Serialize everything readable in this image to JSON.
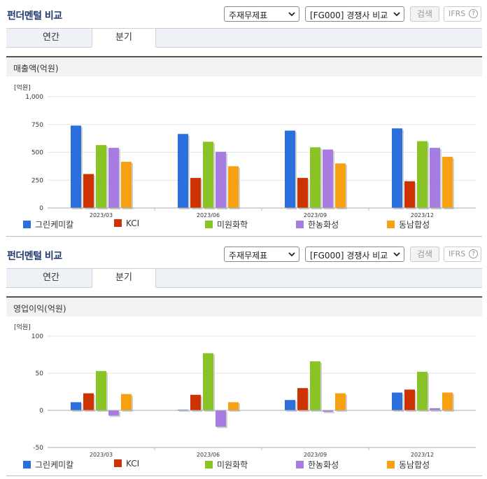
{
  "panels": [
    {
      "title": "펀더멘털 비교",
      "select_report": "주재무제표",
      "select_compare": "[FG000] 경쟁사 비교",
      "search_label": "검색",
      "ifrs_label": "IFRS",
      "ifrs_help": "?",
      "tabs": [
        {
          "label": "연간"
        },
        {
          "label": "분기"
        }
      ],
      "active_tab": 1,
      "section_title": "매출액(억원)"
    },
    {
      "title": "펀더멘털 비교",
      "select_report": "주재무제표",
      "select_compare": "[FG000] 경쟁사 비교",
      "search_label": "검색",
      "ifrs_label": "IFRS",
      "ifrs_help": "?",
      "tabs": [
        {
          "label": "연간"
        },
        {
          "label": "분기"
        }
      ],
      "active_tab": 1,
      "section_title": "영업이익(억원)"
    }
  ],
  "chart_data": [
    {
      "type": "bar",
      "unit_label": "[억원]",
      "categories": [
        "2023/03",
        "2023/06",
        "2023/09",
        "2023/12"
      ],
      "ylim": [
        0,
        1000
      ],
      "yticks": [
        0,
        250,
        500,
        750,
        1000
      ],
      "ytick_labels": [
        "0",
        "250",
        "500",
        "750",
        "1,000"
      ],
      "grid": true,
      "legend_position": "bottom",
      "series": [
        {
          "name": "그린케미칼",
          "color": "#2a6fdb",
          "values": [
            740,
            665,
            695,
            715
          ]
        },
        {
          "name": "KCI",
          "color": "#cc3300",
          "values": [
            305,
            270,
            270,
            240
          ]
        },
        {
          "name": "미원화학",
          "color": "#88c425",
          "values": [
            565,
            595,
            545,
            600
          ]
        },
        {
          "name": "한농화성",
          "color": "#a77ce0",
          "values": [
            540,
            505,
            525,
            540
          ]
        },
        {
          "name": "동남합성",
          "color": "#f7a012",
          "values": [
            415,
            375,
            400,
            460
          ]
        }
      ]
    },
    {
      "type": "bar",
      "unit_label": "[억원]",
      "categories": [
        "2023/03",
        "2023/06",
        "2023/09",
        "2023/12"
      ],
      "ylim": [
        -50,
        100
      ],
      "yticks": [
        -50,
        0,
        50,
        100
      ],
      "ytick_labels": [
        "-50",
        "0",
        "50",
        "100"
      ],
      "grid": true,
      "legend_position": "bottom",
      "series": [
        {
          "name": "그린케미칼",
          "color": "#2a6fdb",
          "values": [
            11,
            1,
            14,
            24
          ]
        },
        {
          "name": "KCI",
          "color": "#cc3300",
          "values": [
            23,
            21,
            30,
            28
          ]
        },
        {
          "name": "미원화학",
          "color": "#88c425",
          "values": [
            53,
            77,
            66,
            52
          ]
        },
        {
          "name": "한농화성",
          "color": "#a77ce0",
          "values": [
            -7,
            -22,
            -2,
            3
          ]
        },
        {
          "name": "동남합성",
          "color": "#f7a012",
          "values": [
            22,
            11,
            23,
            24
          ]
        }
      ]
    }
  ]
}
